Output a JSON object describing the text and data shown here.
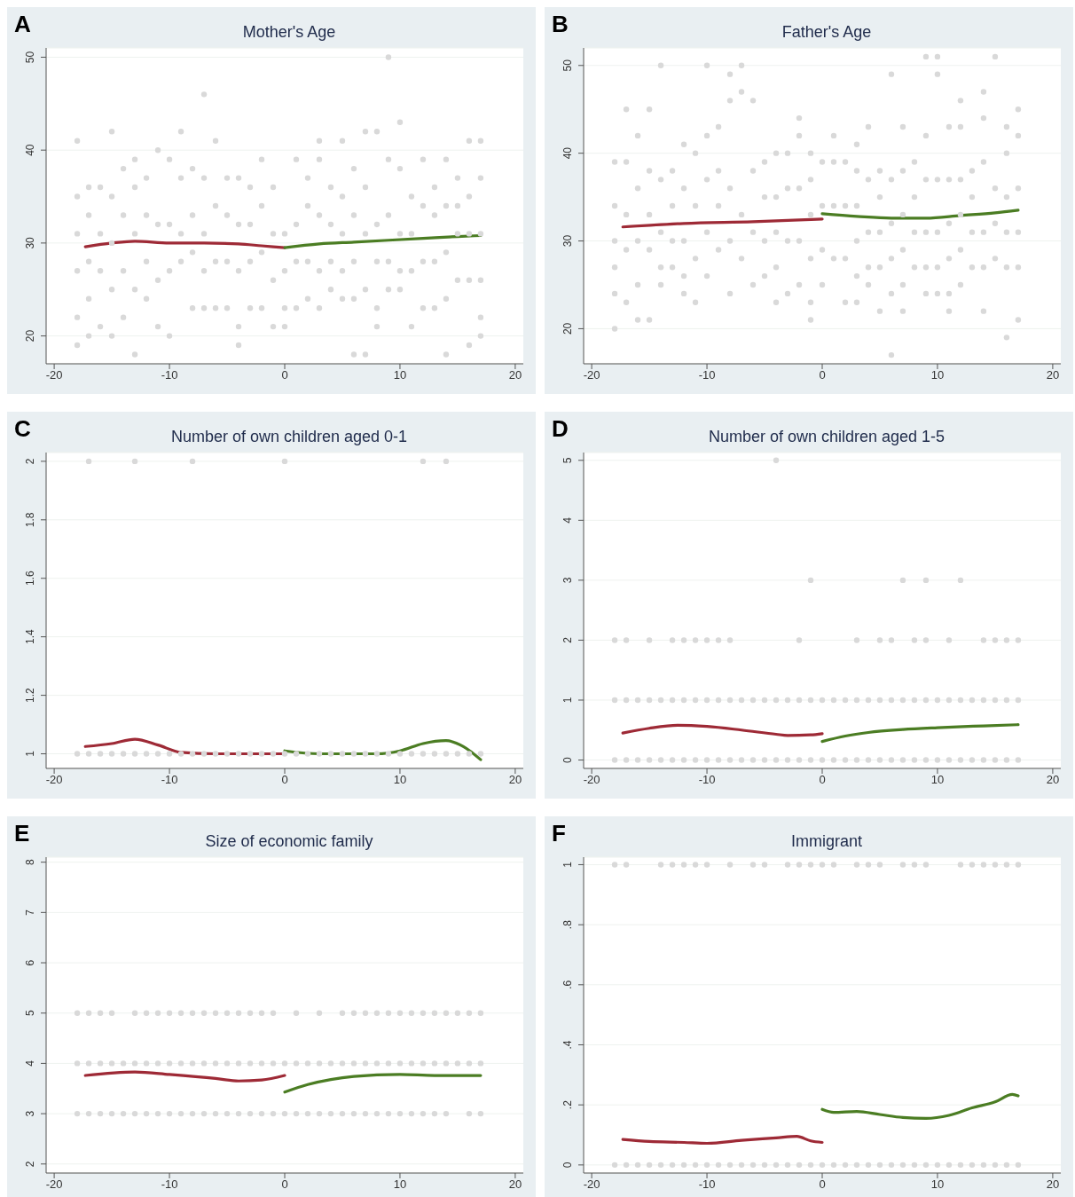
{
  "chart_data": [
    {
      "type": "scatter",
      "title": "Mother's Age",
      "annotations": [
        "A"
      ],
      "xlim": [
        -20.7,
        20.7
      ],
      "xticks": [
        -20,
        -10,
        0,
        10,
        20
      ],
      "ylim": [
        17,
        51
      ],
      "yticks": [
        20,
        30,
        40,
        50
      ],
      "grid": "y",
      "series": [
        {
          "type": "scatter",
          "marker": "circle",
          "color": "#d9d9d9",
          "x": [
            -18,
            -18,
            -18,
            -18,
            -18,
            -18,
            -17,
            -17,
            -17,
            -17,
            -17,
            -16,
            -16,
            -16,
            -16,
            -15,
            -15,
            -15,
            -15,
            -15,
            -14,
            -14,
            -14,
            -14,
            -13,
            -13,
            -13,
            -13,
            -13,
            -12,
            -12,
            -12,
            -12,
            -11,
            -11,
            -11,
            -11,
            -10,
            -10,
            -10,
            -10,
            -9,
            -9,
            -9,
            -9,
            -8,
            -8,
            -8,
            -8,
            -7,
            -7,
            -7,
            -7,
            -7,
            -6,
            -6,
            -6,
            -6,
            -5,
            -5,
            -5,
            -5,
            -4,
            -4,
            -4,
            -4,
            -4,
            -3,
            -3,
            -3,
            -3,
            -2,
            -2,
            -2,
            -2,
            -1,
            -1,
            -1,
            -1,
            0,
            0,
            0,
            0,
            1,
            1,
            1,
            1,
            2,
            2,
            2,
            2,
            3,
            3,
            3,
            3,
            3,
            4,
            4,
            4,
            4,
            5,
            5,
            5,
            5,
            5,
            6,
            6,
            6,
            6,
            6,
            7,
            7,
            7,
            7,
            7,
            8,
            8,
            8,
            8,
            8,
            9,
            9,
            9,
            9,
            9,
            10,
            10,
            10,
            10,
            10,
            11,
            11,
            11,
            11,
            12,
            12,
            12,
            12,
            13,
            13,
            13,
            13,
            14,
            14,
            14,
            14,
            14,
            15,
            15,
            15,
            15,
            16,
            16,
            16,
            16,
            16,
            17,
            17,
            17,
            17,
            17,
            17
          ],
          "values": [
            41,
            35,
            31,
            27,
            22,
            19,
            36,
            33,
            28,
            24,
            20,
            36,
            31,
            27,
            21,
            42,
            35,
            30,
            25,
            20,
            38,
            33,
            27,
            22,
            39,
            36,
            31,
            25,
            18,
            37,
            33,
            28,
            24,
            40,
            32,
            26,
            21,
            39,
            32,
            27,
            20,
            42,
            37,
            31,
            28,
            38,
            33,
            29,
            23,
            46,
            37,
            31,
            27,
            23,
            41,
            34,
            28,
            23,
            37,
            33,
            28,
            23,
            37,
            32,
            27,
            21,
            19,
            36,
            32,
            28,
            23,
            39,
            34,
            29,
            23,
            36,
            31,
            26,
            21,
            31,
            27,
            23,
            21,
            39,
            32,
            28,
            23,
            37,
            34,
            28,
            24,
            41,
            39,
            33,
            27,
            23,
            36,
            32,
            28,
            25,
            41,
            35,
            31,
            27,
            24,
            38,
            33,
            28,
            24,
            18,
            42,
            36,
            31,
            25,
            18,
            42,
            32,
            28,
            23,
            21,
            50,
            39,
            33,
            28,
            25,
            43,
            38,
            31,
            27,
            25,
            35,
            31,
            27,
            21,
            39,
            34,
            28,
            23,
            36,
            33,
            28,
            23,
            39,
            34,
            29,
            24,
            18,
            37,
            34,
            31,
            26,
            41,
            35,
            31,
            26,
            19,
            41,
            37,
            31,
            26,
            22,
            20
          ]
        },
        {
          "type": "line",
          "color": "#9e2a36",
          "x": [
            -17.3,
            -15,
            -13,
            -10,
            -7,
            -4,
            -2,
            0
          ],
          "values": [
            29.6,
            30.0,
            30.2,
            30.0,
            30.0,
            29.9,
            29.7,
            29.5
          ]
        },
        {
          "type": "line",
          "color": "#4b7d23",
          "x": [
            0,
            3,
            6,
            9,
            12,
            15,
            17
          ],
          "values": [
            29.5,
            29.9,
            30.1,
            30.3,
            30.5,
            30.7,
            30.8
          ]
        }
      ]
    },
    {
      "type": "scatter",
      "title": "Father's Age",
      "annotations": [
        "B"
      ],
      "xlim": [
        -20.7,
        20.7
      ],
      "xticks": [
        -20,
        -10,
        0,
        10,
        20
      ],
      "ylim": [
        16,
        52
      ],
      "yticks": [
        20,
        30,
        40,
        50
      ],
      "grid": "y",
      "series": [
        {
          "type": "scatter",
          "marker": "circle",
          "color": "#d9d9d9",
          "x": [
            -18,
            -18,
            -18,
            -18,
            -18,
            -18,
            -17,
            -17,
            -17,
            -17,
            -17,
            -16,
            -16,
            -16,
            -16,
            -16,
            -15,
            -15,
            -15,
            -15,
            -15,
            -14,
            -14,
            -14,
            -14,
            -14,
            -13,
            -13,
            -13,
            -13,
            -12,
            -12,
            -12,
            -12,
            -12,
            -11,
            -11,
            -11,
            -11,
            -10,
            -10,
            -10,
            -10,
            -10,
            -9,
            -9,
            -9,
            -9,
            -8,
            -8,
            -8,
            -8,
            -8,
            -7,
            -7,
            -7,
            -7,
            -6,
            -6,
            -6,
            -6,
            -5,
            -5,
            -5,
            -5,
            -4,
            -4,
            -4,
            -4,
            -4,
            -3,
            -3,
            -3,
            -3,
            -2,
            -2,
            -2,
            -2,
            -2,
            -1,
            -1,
            -1,
            -1,
            -1,
            -1,
            0,
            0,
            0,
            0,
            1,
            1,
            1,
            1,
            2,
            2,
            2,
            2,
            3,
            3,
            3,
            3,
            3,
            3,
            4,
            4,
            4,
            4,
            4,
            5,
            5,
            5,
            5,
            5,
            6,
            6,
            6,
            6,
            6,
            6,
            7,
            7,
            7,
            7,
            7,
            7,
            8,
            8,
            8,
            8,
            9,
            9,
            9,
            9,
            9,
            9,
            10,
            10,
            10,
            10,
            10,
            10,
            11,
            11,
            11,
            11,
            11,
            11,
            12,
            12,
            12,
            12,
            12,
            12,
            13,
            13,
            13,
            13,
            14,
            14,
            14,
            14,
            14,
            14,
            15,
            15,
            15,
            15,
            16,
            16,
            16,
            16,
            16,
            16,
            17,
            17,
            17,
            17,
            17,
            17
          ],
          "values": [
            39,
            34,
            30,
            27,
            24,
            20,
            45,
            39,
            33,
            29,
            23,
            42,
            36,
            30,
            25,
            21,
            45,
            38,
            33,
            29,
            21,
            50,
            37,
            31,
            27,
            25,
            38,
            34,
            30,
            27,
            41,
            36,
            30,
            26,
            24,
            40,
            34,
            28,
            23,
            50,
            42,
            37,
            31,
            26,
            43,
            38,
            34,
            29,
            49,
            46,
            36,
            30,
            24,
            50,
            47,
            33,
            28,
            46,
            38,
            31,
            25,
            39,
            35,
            30,
            26,
            40,
            35,
            31,
            27,
            23,
            40,
            36,
            30,
            24,
            44,
            42,
            36,
            30,
            25,
            40,
            37,
            33,
            28,
            23,
            21,
            39,
            34,
            29,
            25,
            42,
            39,
            34,
            28,
            39,
            34,
            28,
            23,
            41,
            38,
            34,
            30,
            26,
            23,
            43,
            37,
            31,
            27,
            25,
            38,
            35,
            31,
            27,
            22,
            49,
            37,
            32,
            28,
            24,
            17,
            43,
            38,
            33,
            29,
            25,
            22,
            39,
            35,
            31,
            27,
            51,
            42,
            37,
            31,
            27,
            24,
            51,
            49,
            37,
            31,
            27,
            24,
            43,
            37,
            32,
            28,
            24,
            22,
            46,
            43,
            37,
            33,
            29,
            25,
            38,
            35,
            31,
            27,
            47,
            44,
            39,
            31,
            27,
            22,
            51,
            36,
            32,
            28,
            43,
            40,
            35,
            31,
            27,
            19,
            45,
            42,
            36,
            31,
            27,
            21
          ]
        },
        {
          "type": "line",
          "color": "#9e2a36",
          "x": [
            -17.3,
            -12,
            -6,
            0
          ],
          "values": [
            31.6,
            32.0,
            32.2,
            32.5
          ]
        },
        {
          "type": "line",
          "color": "#4b7d23",
          "x": [
            0,
            3,
            6,
            9,
            12,
            15,
            17
          ],
          "values": [
            33.1,
            32.8,
            32.6,
            32.6,
            32.9,
            33.2,
            33.5
          ]
        }
      ]
    },
    {
      "type": "scatter",
      "title": "Number of own children aged 0-1",
      "annotations": [
        "C"
      ],
      "xlim": [
        -20.7,
        20.7
      ],
      "xticks": [
        -20,
        -10,
        0,
        10,
        20
      ],
      "ylim": [
        0.95,
        2.03
      ],
      "yticks": [
        1,
        1.2,
        1.4,
        1.6,
        1.8,
        2
      ],
      "grid": "y",
      "series": [
        {
          "type": "scatter",
          "marker": "circle",
          "color": "#d9d9d9",
          "x": [
            -17,
            -13,
            -8,
            0,
            12,
            14,
            -18,
            -17,
            -16,
            -15,
            -14,
            -13,
            -12,
            -11,
            -10,
            -9,
            -8,
            -7,
            -6,
            -5,
            -4,
            -3,
            -2,
            -1,
            0,
            1,
            2,
            3,
            4,
            5,
            6,
            7,
            8,
            9,
            10,
            11,
            12,
            13,
            14,
            15,
            16,
            17
          ],
          "values": [
            2,
            2,
            2,
            2,
            2,
            2,
            1,
            1,
            1,
            1,
            1,
            1,
            1,
            1,
            1,
            1,
            1,
            1,
            1,
            1,
            1,
            1,
            1,
            1,
            1,
            1,
            1,
            1,
            1,
            1,
            1,
            1,
            1,
            1,
            1,
            1,
            1,
            1,
            1,
            1,
            1,
            1
          ]
        },
        {
          "type": "line",
          "color": "#9e2a36",
          "x": [
            -17.3,
            -15,
            -13,
            -11,
            -9,
            -6,
            0
          ],
          "values": [
            1.025,
            1.035,
            1.05,
            1.03,
            1.005,
            1.0,
            1.0
          ]
        },
        {
          "type": "line",
          "color": "#4b7d23",
          "x": [
            0,
            3,
            8,
            10,
            12,
            14,
            15.5,
            17
          ],
          "values": [
            1.01,
            1.0,
            1.0,
            1.01,
            1.035,
            1.045,
            1.025,
            0.98
          ]
        }
      ]
    },
    {
      "type": "scatter",
      "title": "Number of own children aged 1-5",
      "annotations": [
        "D"
      ],
      "xlim": [
        -20.7,
        20.7
      ],
      "xticks": [
        -20,
        -10,
        0,
        10,
        20
      ],
      "ylim": [
        -0.14,
        5.13
      ],
      "yticks": [
        0,
        1,
        2,
        3,
        4,
        5
      ],
      "grid": "y",
      "series": [
        {
          "type": "scatter",
          "marker": "circle",
          "color": "#d9d9d9",
          "x": [
            -4,
            -1,
            7,
            9,
            12,
            -18,
            -17,
            -15,
            -13,
            -12,
            -11,
            -10,
            -9,
            -8,
            -2,
            3,
            5,
            6,
            8,
            9,
            11,
            14,
            15,
            16,
            17,
            -18,
            -17,
            -16,
            -15,
            -14,
            -13,
            -12,
            -11,
            -10,
            -9,
            -8,
            -7,
            -6,
            -5,
            -4,
            -3,
            -2,
            -1,
            0,
            1,
            2,
            3,
            4,
            5,
            6,
            7,
            8,
            9,
            10,
            11,
            12,
            13,
            14,
            15,
            16,
            17,
            -18,
            -17,
            -16,
            -15,
            -14,
            -13,
            -12,
            -11,
            -10,
            -9,
            -8,
            -7,
            -6,
            -5,
            -4,
            -3,
            -2,
            -1,
            0,
            1,
            2,
            3,
            4,
            5,
            6,
            7,
            8,
            9,
            10,
            11,
            12,
            13,
            14,
            15,
            16,
            17
          ],
          "values": [
            5,
            3,
            3,
            3,
            3,
            2,
            2,
            2,
            2,
            2,
            2,
            2,
            2,
            2,
            2,
            2,
            2,
            2,
            2,
            2,
            2,
            2,
            2,
            2,
            2,
            1,
            1,
            1,
            1,
            1,
            1,
            1,
            1,
            1,
            1,
            1,
            1,
            1,
            1,
            1,
            1,
            1,
            1,
            1,
            1,
            1,
            1,
            1,
            1,
            1,
            1,
            1,
            1,
            1,
            1,
            1,
            1,
            1,
            1,
            1,
            1,
            0,
            0,
            0,
            0,
            0,
            0,
            0,
            0,
            0,
            0,
            0,
            0,
            0,
            0,
            0,
            0,
            0,
            0,
            0,
            0,
            0,
            0,
            0,
            0,
            0,
            0,
            0,
            0,
            0,
            0,
            0,
            0,
            0,
            0,
            0,
            0
          ]
        },
        {
          "type": "line",
          "color": "#9e2a36",
          "x": [
            -17.3,
            -15,
            -12.5,
            -10,
            -7,
            -4,
            -3,
            -1,
            0
          ],
          "values": [
            0.45,
            0.53,
            0.58,
            0.56,
            0.5,
            0.43,
            0.41,
            0.42,
            0.44
          ]
        },
        {
          "type": "line",
          "color": "#4b7d23",
          "x": [
            0,
            2,
            4,
            7,
            10,
            14,
            17
          ],
          "values": [
            0.31,
            0.4,
            0.46,
            0.51,
            0.54,
            0.57,
            0.59
          ]
        }
      ]
    },
    {
      "type": "scatter",
      "title": "Size of economic family",
      "annotations": [
        "E"
      ],
      "xlim": [
        -20.7,
        20.7
      ],
      "xticks": [
        -20,
        -10,
        0,
        10,
        20
      ],
      "ylim": [
        1.82,
        8.1
      ],
      "yticks": [
        2,
        3,
        4,
        5,
        6,
        7,
        8
      ],
      "grid": "y",
      "series": [
        {
          "type": "scatter",
          "marker": "circle",
          "color": "#d9d9d9",
          "x": [
            -18,
            -17,
            -16,
            -15,
            -13,
            -12,
            -11,
            -10,
            -9,
            -8,
            -7,
            -6,
            -5,
            -4,
            -3,
            -2,
            -1,
            1,
            3,
            5,
            6,
            7,
            8,
            9,
            10,
            11,
            12,
            13,
            14,
            15,
            16,
            17,
            -18,
            -17,
            -16,
            -15,
            -14,
            -13,
            -12,
            -11,
            -10,
            -9,
            -8,
            -7,
            -6,
            -5,
            -4,
            -3,
            -2,
            -1,
            0,
            1,
            2,
            3,
            4,
            5,
            6,
            7,
            8,
            9,
            10,
            11,
            12,
            13,
            14,
            15,
            16,
            17,
            -18,
            -17,
            -16,
            -15,
            -14,
            -13,
            -12,
            -11,
            -10,
            -9,
            -8,
            -7,
            -6,
            -5,
            -4,
            -3,
            -2,
            -1,
            0,
            1,
            2,
            3,
            4,
            5,
            6,
            7,
            8,
            9,
            10,
            11,
            12,
            13,
            14,
            16,
            17
          ],
          "values": [
            5,
            5,
            5,
            5,
            5,
            5,
            5,
            5,
            5,
            5,
            5,
            5,
            5,
            5,
            5,
            5,
            5,
            5,
            5,
            5,
            5,
            5,
            5,
            5,
            5,
            5,
            5,
            5,
            5,
            5,
            5,
            5,
            4,
            4,
            4,
            4,
            4,
            4,
            4,
            4,
            4,
            4,
            4,
            4,
            4,
            4,
            4,
            4,
            4,
            4,
            4,
            4,
            4,
            4,
            4,
            4,
            4,
            4,
            4,
            4,
            4,
            4,
            4,
            4,
            4,
            4,
            4,
            4,
            3,
            3,
            3,
            3,
            3,
            3,
            3,
            3,
            3,
            3,
            3,
            3,
            3,
            3,
            3,
            3,
            3,
            3,
            3,
            3,
            3,
            3,
            3,
            3,
            3,
            3,
            3,
            3,
            3,
            3,
            3,
            3,
            3,
            3,
            3
          ]
        },
        {
          "type": "line",
          "color": "#9e2a36",
          "x": [
            -17.3,
            -13,
            -10,
            -6,
            -4,
            -2,
            0
          ],
          "values": [
            3.76,
            3.83,
            3.78,
            3.7,
            3.65,
            3.67,
            3.76
          ]
        },
        {
          "type": "line",
          "color": "#4b7d23",
          "x": [
            0,
            2,
            4,
            6,
            10,
            13,
            17
          ],
          "values": [
            3.43,
            3.58,
            3.68,
            3.74,
            3.78,
            3.76,
            3.76
          ]
        }
      ]
    },
    {
      "type": "scatter",
      "title": "Immigrant",
      "annotations": [
        "F"
      ],
      "xlim": [
        -20.7,
        20.7
      ],
      "xticks": [
        -20,
        -10,
        0,
        10,
        20
      ],
      "ylim": [
        -0.027,
        1.025
      ],
      "yticks": [
        0,
        {
          "value": 0.2,
          "label": ".2"
        },
        {
          "value": 0.4,
          "label": ".4"
        },
        {
          "value": 0.6,
          "label": ".6"
        },
        {
          "value": 0.8,
          "label": ".8"
        },
        1
      ],
      "grid": "y",
      "series": [
        {
          "type": "scatter",
          "marker": "circle",
          "color": "#d9d9d9",
          "x": [
            -18,
            -17,
            -14,
            -13,
            -12,
            -11,
            -10,
            -8,
            -6,
            -5,
            -3,
            -2,
            -1,
            0,
            1,
            3,
            4,
            5,
            7,
            8,
            9,
            12,
            13,
            14,
            15,
            16,
            17,
            -18,
            -17,
            -16,
            -15,
            -14,
            -13,
            -12,
            -11,
            -10,
            -9,
            -8,
            -7,
            -6,
            -5,
            -4,
            -3,
            -2,
            -1,
            0,
            1,
            2,
            3,
            4,
            5,
            6,
            7,
            8,
            9,
            10,
            11,
            12,
            13,
            14,
            15,
            16,
            17
          ],
          "values": [
            1,
            1,
            1,
            1,
            1,
            1,
            1,
            1,
            1,
            1,
            1,
            1,
            1,
            1,
            1,
            1,
            1,
            1,
            1,
            1,
            1,
            1,
            1,
            1,
            1,
            1,
            1,
            0,
            0,
            0,
            0,
            0,
            0,
            0,
            0,
            0,
            0,
            0,
            0,
            0,
            0,
            0,
            0,
            0,
            0,
            0,
            0,
            0,
            0,
            0,
            0,
            0,
            0,
            0,
            0,
            0,
            0,
            0,
            0,
            0,
            0,
            0,
            0
          ]
        },
        {
          "type": "line",
          "color": "#9e2a36",
          "x": [
            -17.3,
            -15,
            -12,
            -10,
            -7,
            -4,
            -2.2,
            -1,
            0
          ],
          "values": [
            0.085,
            0.078,
            0.075,
            0.072,
            0.082,
            0.09,
            0.095,
            0.08,
            0.075
          ]
        },
        {
          "type": "line",
          "color": "#4b7d23",
          "x": [
            0,
            1,
            3,
            5,
            7,
            9,
            11,
            13,
            15,
            16.5,
            17
          ],
          "values": [
            0.185,
            0.175,
            0.178,
            0.168,
            0.158,
            0.155,
            0.165,
            0.19,
            0.21,
            0.235,
            0.23
          ]
        }
      ]
    }
  ]
}
